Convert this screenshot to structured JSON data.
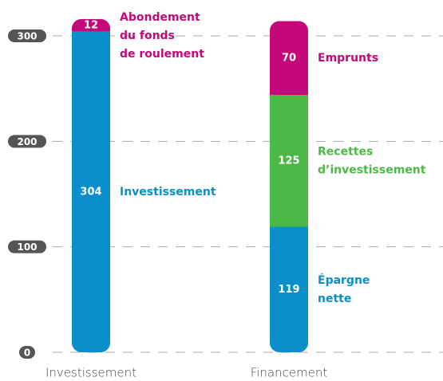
{
  "chart_data": {
    "type": "stacked_bar",
    "categories": [
      "Investissement",
      "Financement"
    ],
    "stacks": [
      {
        "segments": [
          {
            "name": [
              "Investissement"
            ],
            "value": 304,
            "color": "#0a8fca"
          },
          {
            "name": [
              "Abondement",
              "du fonds",
              "de roulement"
            ],
            "value": 12,
            "color": "#c4087a"
          }
        ]
      },
      {
        "segments": [
          {
            "name": [
              "Épargne",
              "nette"
            ],
            "value": 119,
            "color": "#0a8fca"
          },
          {
            "name": [
              "Recettes",
              "d’investissement"
            ],
            "value": 125,
            "color": "#4cb848"
          },
          {
            "name": [
              "Emprunts"
            ],
            "value": 70,
            "color": "#c4087a"
          }
        ]
      }
    ],
    "ylim": [
      0,
      300
    ],
    "yticks": [
      0,
      100,
      200,
      300
    ],
    "grid": true
  }
}
